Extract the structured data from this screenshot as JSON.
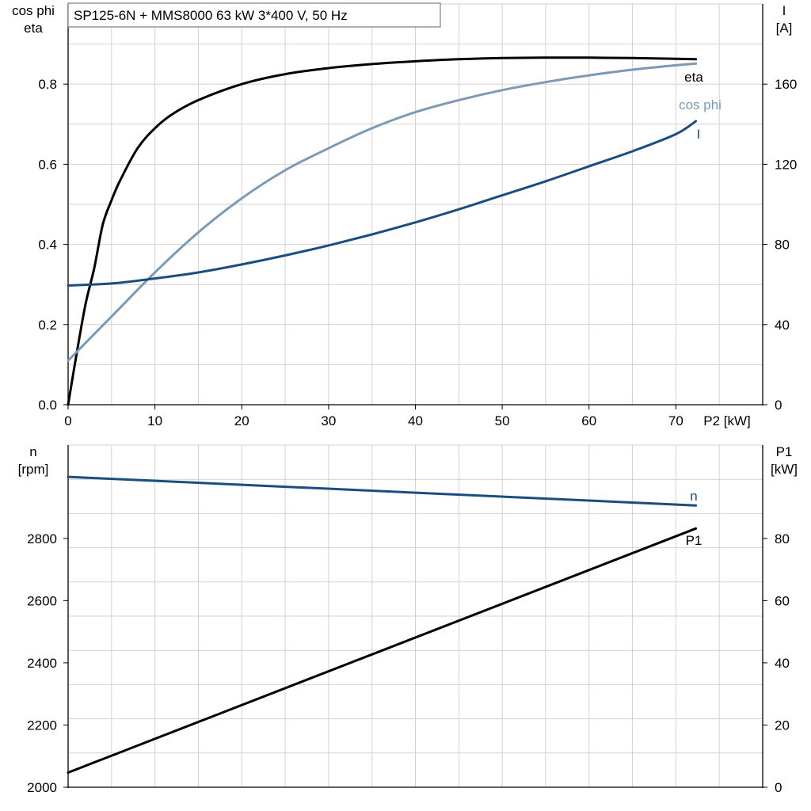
{
  "chart_data": [
    {
      "type": "line",
      "title": "SP125-6N + MMS8000   63 kW   3*400 V, 50 Hz",
      "xlabel": "P2 [kW]",
      "xlim": [
        0,
        80
      ],
      "x_ticks": [
        0,
        10,
        20,
        30,
        40,
        50,
        60,
        70
      ],
      "left_axis": {
        "label_lines": [
          "cos phi",
          "eta"
        ],
        "ylim": [
          0,
          1.0
        ],
        "ticks": [
          0.0,
          0.2,
          0.4,
          0.6,
          0.8
        ],
        "tick_decimals": 1
      },
      "right_axis": {
        "label_lines": [
          "I",
          "[A]"
        ],
        "ylim": [
          0,
          200
        ],
        "ticks": [
          0,
          40,
          80,
          120,
          160
        ],
        "tick_decimals": 0
      },
      "grid": true,
      "series": [
        {
          "name": "eta",
          "axis": "left",
          "color": "#000000",
          "x": [
            0,
            1,
            2,
            3,
            4,
            5,
            6,
            8,
            10,
            12,
            15,
            20,
            25,
            30,
            35,
            40,
            45,
            50,
            55,
            60,
            65,
            70,
            72.3
          ],
          "y": [
            0.0,
            0.13,
            0.25,
            0.34,
            0.45,
            0.51,
            0.56,
            0.64,
            0.69,
            0.725,
            0.76,
            0.8,
            0.825,
            0.84,
            0.85,
            0.857,
            0.862,
            0.865,
            0.866,
            0.866,
            0.865,
            0.863,
            0.862
          ]
        },
        {
          "name": "cos phi",
          "axis": "left",
          "color": "#7a9ab8",
          "x": [
            0,
            5,
            10,
            15,
            20,
            25,
            30,
            35,
            40,
            45,
            50,
            55,
            60,
            65,
            70,
            72.3
          ],
          "y": [
            0.11,
            0.22,
            0.33,
            0.43,
            0.515,
            0.585,
            0.64,
            0.69,
            0.73,
            0.76,
            0.785,
            0.805,
            0.822,
            0.836,
            0.847,
            0.851
          ]
        },
        {
          "name": "I",
          "axis": "right",
          "color": "#1a4e80",
          "x": [
            0,
            5,
            10,
            15,
            20,
            25,
            30,
            35,
            40,
            45,
            50,
            55,
            60,
            65,
            70,
            72.3
          ],
          "y": [
            59.5,
            60.5,
            63,
            66,
            70,
            74.5,
            79.5,
            85,
            91,
            97.5,
            104.5,
            111.5,
            119,
            126.5,
            135,
            141.5
          ]
        }
      ]
    },
    {
      "type": "line",
      "xlim": [
        0,
        80
      ],
      "left_axis": {
        "label_lines": [
          "n",
          "[rpm]"
        ],
        "ylim": [
          2000,
          3100
        ],
        "ticks": [
          2000,
          2200,
          2400,
          2600,
          2800
        ],
        "tick_decimals": 0
      },
      "right_axis": {
        "label_lines": [
          "P1",
          "[kW]"
        ],
        "ylim": [
          0,
          110
        ],
        "ticks": [
          0,
          20,
          40,
          60,
          80
        ],
        "tick_decimals": 0
      },
      "grid": true,
      "series": [
        {
          "name": "n",
          "axis": "left",
          "color": "#1a4e80",
          "x": [
            0,
            72.3
          ],
          "y": [
            2998,
            2906
          ]
        },
        {
          "name": "P1",
          "axis": "right",
          "color": "#000000",
          "x": [
            0,
            72.3
          ],
          "y": [
            4.7,
            83.2
          ]
        }
      ]
    }
  ]
}
